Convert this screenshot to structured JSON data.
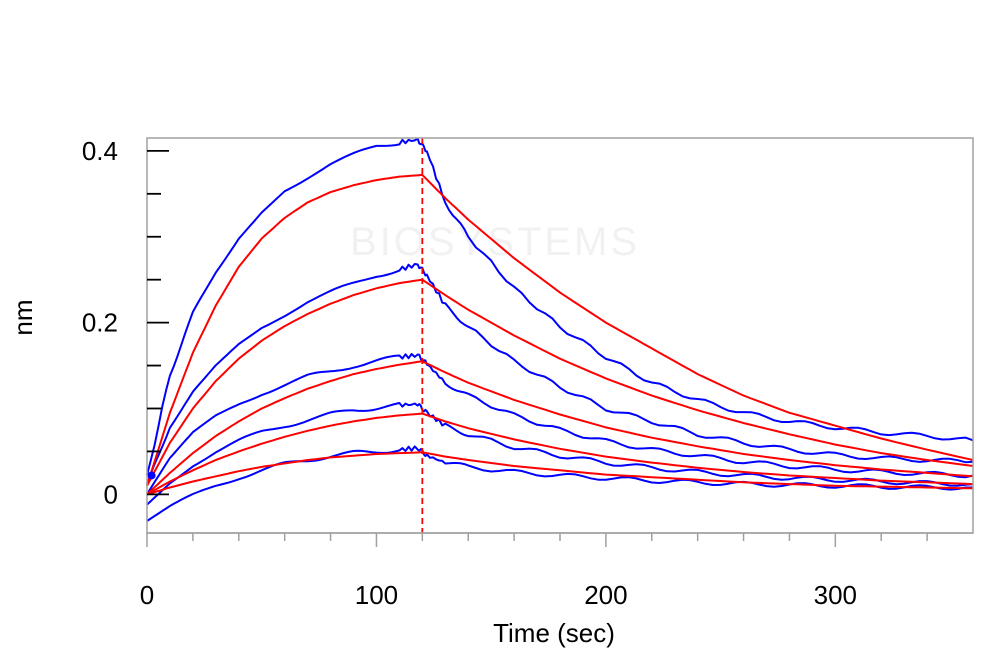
{
  "chart_data": {
    "type": "line",
    "xlabel": "Time (sec)",
    "ylabel": "nm",
    "xlim": [
      0,
      360
    ],
    "ylim": [
      -0.045,
      0.415
    ],
    "x_ticks": [
      0,
      100,
      200,
      300
    ],
    "y_ticks": [
      0,
      0.2,
      0.4
    ],
    "x_minor_step": 20,
    "y_minor_step": 0.05,
    "grid": false,
    "legend": "none",
    "watermark": "BIOSYSTEMS",
    "association_end": 120,
    "marker_line": {
      "x": 120,
      "style": "dashed",
      "color": "#ff0000"
    },
    "colors": {
      "measured": "#0000ff",
      "fit": "#ff0000"
    },
    "measured_series": [
      {
        "points": [
          [
            0,
            0.02
          ],
          [
            10,
            0.14
          ],
          [
            20,
            0.21
          ],
          [
            30,
            0.26
          ],
          [
            40,
            0.3
          ],
          [
            50,
            0.33
          ],
          [
            60,
            0.355
          ],
          [
            70,
            0.37
          ],
          [
            80,
            0.385
          ],
          [
            90,
            0.395
          ],
          [
            100,
            0.405
          ],
          [
            110,
            0.41
          ],
          [
            118,
            0.413
          ],
          [
            122,
            0.4
          ],
          [
            130,
            0.34
          ],
          [
            140,
            0.3
          ],
          [
            160,
            0.24
          ],
          [
            180,
            0.195
          ],
          [
            200,
            0.16
          ],
          [
            220,
            0.13
          ],
          [
            240,
            0.11
          ],
          [
            260,
            0.095
          ],
          [
            280,
            0.085
          ],
          [
            300,
            0.078
          ],
          [
            320,
            0.072
          ],
          [
            340,
            0.068
          ],
          [
            360,
            0.063
          ]
        ]
      },
      {
        "points": [
          [
            0,
            0.01
          ],
          [
            10,
            0.08
          ],
          [
            20,
            0.12
          ],
          [
            30,
            0.15
          ],
          [
            40,
            0.175
          ],
          [
            50,
            0.195
          ],
          [
            60,
            0.21
          ],
          [
            70,
            0.225
          ],
          [
            80,
            0.235
          ],
          [
            90,
            0.245
          ],
          [
            100,
            0.255
          ],
          [
            110,
            0.262
          ],
          [
            118,
            0.268
          ],
          [
            122,
            0.255
          ],
          [
            130,
            0.22
          ],
          [
            140,
            0.195
          ],
          [
            160,
            0.155
          ],
          [
            180,
            0.125
          ],
          [
            200,
            0.1
          ],
          [
            220,
            0.085
          ],
          [
            240,
            0.07
          ],
          [
            260,
            0.06
          ],
          [
            280,
            0.052
          ],
          [
            300,
            0.046
          ],
          [
            320,
            0.042
          ],
          [
            340,
            0.04
          ],
          [
            360,
            0.038
          ]
        ]
      },
      {
        "points": [
          [
            0,
            0.0
          ],
          [
            10,
            0.04
          ],
          [
            20,
            0.07
          ],
          [
            30,
            0.09
          ],
          [
            40,
            0.105
          ],
          [
            50,
            0.118
          ],
          [
            60,
            0.128
          ],
          [
            70,
            0.137
          ],
          [
            80,
            0.143
          ],
          [
            90,
            0.15
          ],
          [
            100,
            0.155
          ],
          [
            110,
            0.16
          ],
          [
            118,
            0.162
          ],
          [
            122,
            0.152
          ],
          [
            130,
            0.13
          ],
          [
            140,
            0.115
          ],
          [
            160,
            0.092
          ],
          [
            180,
            0.075
          ],
          [
            200,
            0.062
          ],
          [
            220,
            0.052
          ],
          [
            240,
            0.045
          ],
          [
            260,
            0.038
          ],
          [
            280,
            0.033
          ],
          [
            300,
            0.029
          ],
          [
            320,
            0.026
          ],
          [
            340,
            0.024
          ],
          [
            360,
            0.022
          ]
        ]
      },
      {
        "points": [
          [
            0,
            -0.01
          ],
          [
            10,
            0.015
          ],
          [
            20,
            0.035
          ],
          [
            30,
            0.05
          ],
          [
            40,
            0.062
          ],
          [
            50,
            0.072
          ],
          [
            60,
            0.08
          ],
          [
            70,
            0.087
          ],
          [
            80,
            0.093
          ],
          [
            90,
            0.098
          ],
          [
            100,
            0.101
          ],
          [
            110,
            0.104
          ],
          [
            118,
            0.105
          ],
          [
            122,
            0.095
          ],
          [
            130,
            0.08
          ],
          [
            140,
            0.07
          ],
          [
            160,
            0.055
          ],
          [
            180,
            0.045
          ],
          [
            200,
            0.037
          ],
          [
            220,
            0.031
          ],
          [
            240,
            0.026
          ],
          [
            260,
            0.022
          ],
          [
            280,
            0.019
          ],
          [
            300,
            0.017
          ],
          [
            320,
            0.015
          ],
          [
            340,
            0.013
          ],
          [
            360,
            0.012
          ]
        ]
      },
      {
        "points": [
          [
            0,
            -0.03
          ],
          [
            10,
            -0.015
          ],
          [
            20,
            -0.002
          ],
          [
            30,
            0.01
          ],
          [
            40,
            0.02
          ],
          [
            50,
            0.028
          ],
          [
            60,
            0.035
          ],
          [
            70,
            0.04
          ],
          [
            80,
            0.045
          ],
          [
            90,
            0.048
          ],
          [
            100,
            0.05
          ],
          [
            110,
            0.052
          ],
          [
            118,
            0.054
          ],
          [
            122,
            0.045
          ],
          [
            130,
            0.037
          ],
          [
            140,
            0.032
          ],
          [
            160,
            0.026
          ],
          [
            180,
            0.022
          ],
          [
            200,
            0.019
          ],
          [
            220,
            0.016
          ],
          [
            240,
            0.014
          ],
          [
            260,
            0.012
          ],
          [
            280,
            0.011
          ],
          [
            300,
            0.01
          ],
          [
            320,
            0.009
          ],
          [
            340,
            0.008
          ],
          [
            360,
            0.008
          ]
        ]
      }
    ],
    "fit_series": [
      {
        "points": [
          [
            0,
            0.01
          ],
          [
            10,
            0.095
          ],
          [
            20,
            0.165
          ],
          [
            30,
            0.22
          ],
          [
            40,
            0.265
          ],
          [
            50,
            0.298
          ],
          [
            60,
            0.322
          ],
          [
            70,
            0.34
          ],
          [
            80,
            0.352
          ],
          [
            90,
            0.36
          ],
          [
            100,
            0.366
          ],
          [
            110,
            0.37
          ],
          [
            120,
            0.372
          ],
          [
            130,
            0.345
          ],
          [
            140,
            0.32
          ],
          [
            160,
            0.275
          ],
          [
            180,
            0.235
          ],
          [
            200,
            0.2
          ],
          [
            220,
            0.17
          ],
          [
            240,
            0.14
          ],
          [
            260,
            0.115
          ],
          [
            280,
            0.095
          ],
          [
            300,
            0.08
          ],
          [
            320,
            0.065
          ],
          [
            340,
            0.052
          ],
          [
            360,
            0.04
          ]
        ]
      },
      {
        "points": [
          [
            0,
            0.01
          ],
          [
            10,
            0.06
          ],
          [
            20,
            0.1
          ],
          [
            30,
            0.132
          ],
          [
            40,
            0.158
          ],
          [
            50,
            0.179
          ],
          [
            60,
            0.196
          ],
          [
            70,
            0.21
          ],
          [
            80,
            0.222
          ],
          [
            90,
            0.232
          ],
          [
            100,
            0.24
          ],
          [
            110,
            0.246
          ],
          [
            120,
            0.25
          ],
          [
            130,
            0.232
          ],
          [
            140,
            0.215
          ],
          [
            160,
            0.185
          ],
          [
            180,
            0.158
          ],
          [
            200,
            0.135
          ],
          [
            220,
            0.115
          ],
          [
            240,
            0.098
          ],
          [
            260,
            0.083
          ],
          [
            280,
            0.07
          ],
          [
            300,
            0.058
          ],
          [
            320,
            0.048
          ],
          [
            340,
            0.04
          ],
          [
            360,
            0.033
          ]
        ]
      },
      {
        "points": [
          [
            0,
            0.0
          ],
          [
            10,
            0.025
          ],
          [
            20,
            0.048
          ],
          [
            30,
            0.068
          ],
          [
            40,
            0.085
          ],
          [
            50,
            0.1
          ],
          [
            60,
            0.112
          ],
          [
            70,
            0.123
          ],
          [
            80,
            0.132
          ],
          [
            90,
            0.14
          ],
          [
            100,
            0.146
          ],
          [
            110,
            0.151
          ],
          [
            120,
            0.155
          ],
          [
            130,
            0.142
          ],
          [
            140,
            0.13
          ],
          [
            160,
            0.11
          ],
          [
            180,
            0.093
          ],
          [
            200,
            0.078
          ],
          [
            220,
            0.066
          ],
          [
            240,
            0.056
          ],
          [
            260,
            0.047
          ],
          [
            280,
            0.04
          ],
          [
            300,
            0.034
          ],
          [
            320,
            0.029
          ],
          [
            340,
            0.025
          ],
          [
            360,
            0.021
          ]
        ]
      },
      {
        "points": [
          [
            0,
            0.0
          ],
          [
            10,
            0.015
          ],
          [
            20,
            0.028
          ],
          [
            30,
            0.04
          ],
          [
            40,
            0.05
          ],
          [
            50,
            0.059
          ],
          [
            60,
            0.067
          ],
          [
            70,
            0.074
          ],
          [
            80,
            0.08
          ],
          [
            90,
            0.085
          ],
          [
            100,
            0.089
          ],
          [
            110,
            0.092
          ],
          [
            120,
            0.094
          ],
          [
            130,
            0.085
          ],
          [
            140,
            0.077
          ],
          [
            160,
            0.064
          ],
          [
            180,
            0.053
          ],
          [
            200,
            0.044
          ],
          [
            220,
            0.037
          ],
          [
            240,
            0.031
          ],
          [
            260,
            0.026
          ],
          [
            280,
            0.022
          ],
          [
            300,
            0.019
          ],
          [
            320,
            0.016
          ],
          [
            340,
            0.014
          ],
          [
            360,
            0.012
          ]
        ]
      },
      {
        "points": [
          [
            0,
            0.0
          ],
          [
            10,
            0.008
          ],
          [
            20,
            0.015
          ],
          [
            30,
            0.021
          ],
          [
            40,
            0.027
          ],
          [
            50,
            0.032
          ],
          [
            60,
            0.036
          ],
          [
            70,
            0.04
          ],
          [
            80,
            0.043
          ],
          [
            90,
            0.045
          ],
          [
            100,
            0.047
          ],
          [
            110,
            0.048
          ],
          [
            120,
            0.049
          ],
          [
            130,
            0.044
          ],
          [
            140,
            0.04
          ],
          [
            160,
            0.033
          ],
          [
            180,
            0.028
          ],
          [
            200,
            0.023
          ],
          [
            220,
            0.02
          ],
          [
            240,
            0.017
          ],
          [
            260,
            0.014
          ],
          [
            280,
            0.012
          ],
          [
            300,
            0.01
          ],
          [
            320,
            0.009
          ],
          [
            340,
            0.008
          ],
          [
            360,
            0.007
          ]
        ]
      }
    ]
  }
}
